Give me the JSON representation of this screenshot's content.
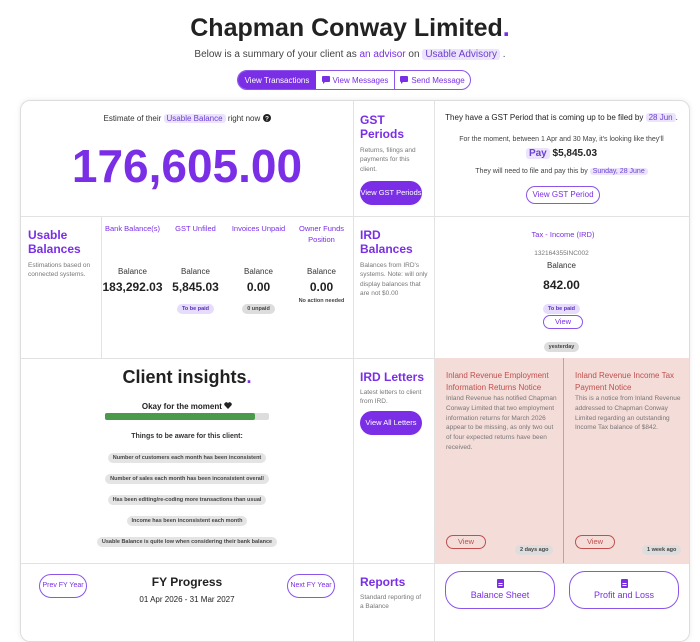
{
  "header": {
    "title": "Chapman Conway Limited",
    "title_dot": ".",
    "subtitle": {
      "before": "Below is a summary of your client as",
      "role": "an advisor",
      "middle": "on",
      "org": "Usable Advisory",
      "after": "."
    },
    "actions": [
      "View Transactions",
      "View Messages",
      "Send Message"
    ]
  },
  "estimate": {
    "before": "Estimate of their",
    "highlight": "Usable Balance",
    "after": "right now",
    "amount": "176,605.00"
  },
  "gst_periods": {
    "title": "GST Periods",
    "description": "Returns, filings and payments for this client.",
    "button": "View GST Periods"
  },
  "gst_summary": {
    "line1_before": "They have a GST Period that is coming up to be filed by",
    "line1_date": "28 Jun",
    "line1_after": ".",
    "line2": "For the moment, between 1 Apr and 30 May, it's looking like they'll",
    "pay_label": "Pay",
    "pay_amount": "$5,845.03",
    "line3_before": "They will need to file and pay this by",
    "line3_date": "Sunday, 28 June",
    "button": "View GST Period"
  },
  "usable_balances": {
    "title": "Usable Balances",
    "description": "Estimations based on connected systems.",
    "columns": [
      {
        "header": "Bank Balance(s)",
        "label": "Balance",
        "amount": "183,292.03"
      },
      {
        "header": "GST Unfiled",
        "label": "Balance",
        "amount": "5,845.03",
        "badge": "To be paid"
      },
      {
        "header": "Invoices Unpaid",
        "label": "Balance",
        "amount": "0.00",
        "badge": "0 unpaid"
      },
      {
        "header": "Owner Funds Position",
        "label": "Balance",
        "amount": "0.00",
        "badge": "No action needed"
      }
    ]
  },
  "ird_balances": {
    "title": "IRD Balances",
    "description": "Balances from IRD's systems. Note: will only display balances that are not $0.00",
    "account": {
      "name": "Tax - Income (IRD)",
      "code": "132164355INC002",
      "label": "Balance",
      "amount": "842.00",
      "badge": "To be paid",
      "button": "View",
      "updated": "yesterday"
    }
  },
  "insights": {
    "title": "Client insights",
    "title_dot": ".",
    "status": "Okay for the moment",
    "aware_heading": "Things to be aware for this client:",
    "items": [
      "Number of customers each month has been inconsistent",
      "Number of sales each month has been inconsistent overall",
      "Has been editing/re-coding more transactions than usual",
      "Income has been inconsistent each month",
      "Usable Balance is quite low when considering their bank balance"
    ]
  },
  "ird_letters": {
    "title": "IRD Letters",
    "description": "Latest letters to client from IRD.",
    "button": "View All Letters",
    "letters": [
      {
        "title": "Inland Revenue Employment Information Returns Notice",
        "body": "Inland Revenue has notified Chapman Conway Limited that two employment information returns for March 2026 appear to be missing, as only two out of four expected returns have been received.",
        "button": "View",
        "age": "2 days ago"
      },
      {
        "title": "Inland Revenue Income Tax Payment Notice",
        "body": "This is a notice from Inland Revenue addressed to Chapman Conway Limited regarding an outstanding Income Tax balance of $842.",
        "button": "View",
        "age": "1 week ago"
      }
    ]
  },
  "fy_progress": {
    "prev": "Prev FY Year",
    "title": "FY Progress",
    "range": "01 Apr 2026 - 31 Mar 2027",
    "next": "Next FY Year"
  },
  "reports": {
    "title": "Reports",
    "description": "Standard reporting of a Balance",
    "buttons": [
      "Balance Sheet",
      "Profit and Loss"
    ]
  }
}
